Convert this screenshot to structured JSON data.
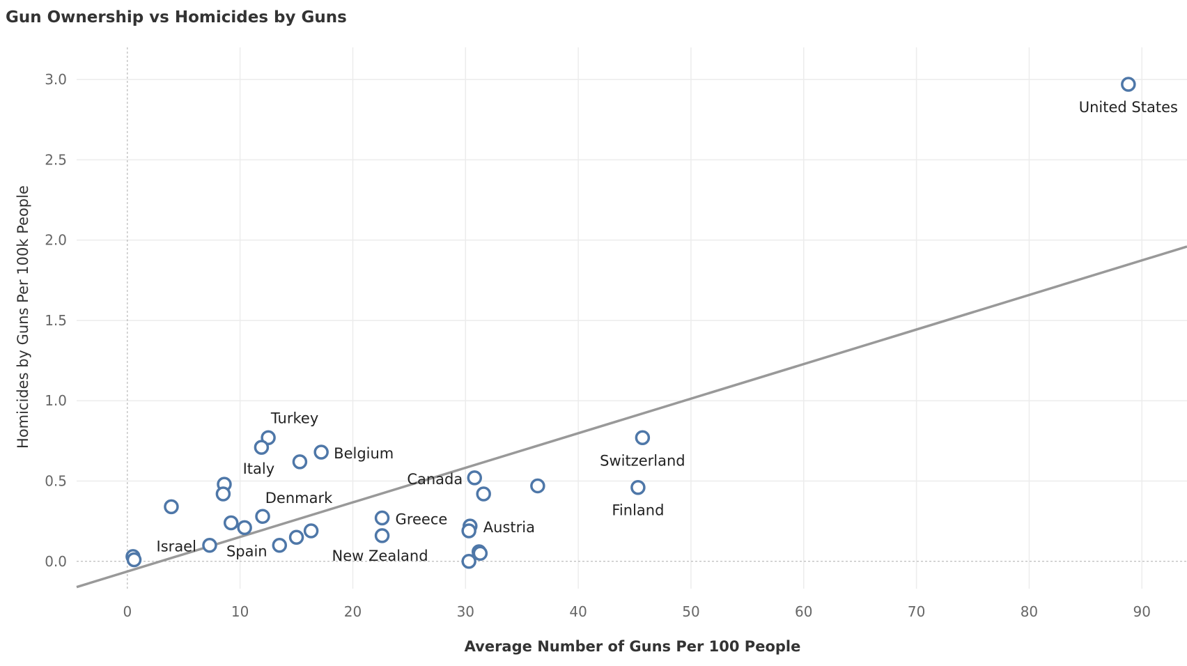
{
  "chart_data": {
    "type": "scatter",
    "title": "Gun Ownership vs Homicides by Guns",
    "xlabel": "Average Number of Guns Per 100 People",
    "ylabel": "Homicides by Guns Per 100k People",
    "xlim": [
      -4.5,
      94
    ],
    "ylim": [
      -0.17,
      3.2
    ],
    "x_ticks": [
      0,
      10,
      20,
      30,
      40,
      50,
      60,
      70,
      80,
      90
    ],
    "y_ticks": [
      0.0,
      0.5,
      1.0,
      1.5,
      2.0,
      2.5,
      3.0
    ],
    "x_tick_labels": [
      "0",
      "10",
      "20",
      "30",
      "40",
      "50",
      "60",
      "70",
      "80",
      "90"
    ],
    "y_tick_labels": [
      "0.0",
      "0.5",
      "1.0",
      "1.5",
      "2.0",
      "2.5",
      "3.0"
    ],
    "grid": true,
    "point_color": "#4e77a8",
    "trend_color": "#999999",
    "trend_line": {
      "x": [
        -4.5,
        94
      ],
      "y": [
        -0.16,
        1.96
      ]
    },
    "points": [
      {
        "x": 88.8,
        "y": 2.97,
        "label": "United States"
      },
      {
        "x": 45.7,
        "y": 0.77,
        "label": "Switzerland"
      },
      {
        "x": 45.3,
        "y": 0.46,
        "label": "Finland"
      },
      {
        "x": 36.4,
        "y": 0.47,
        "label": ""
      },
      {
        "x": 31.6,
        "y": 0.42,
        "label": ""
      },
      {
        "x": 30.8,
        "y": 0.52,
        "label": "Canada"
      },
      {
        "x": 30.4,
        "y": 0.22,
        "label": "Austria"
      },
      {
        "x": 30.3,
        "y": 0.19,
        "label": ""
      },
      {
        "x": 31.2,
        "y": 0.06,
        "label": ""
      },
      {
        "x": 31.3,
        "y": 0.05,
        "label": ""
      },
      {
        "x": 30.3,
        "y": 0.0,
        "label": ""
      },
      {
        "x": 22.6,
        "y": 0.27,
        "label": "Greece"
      },
      {
        "x": 22.6,
        "y": 0.16,
        "label": "New Zealand"
      },
      {
        "x": 17.2,
        "y": 0.68,
        "label": "Belgium"
      },
      {
        "x": 15.3,
        "y": 0.62,
        "label": ""
      },
      {
        "x": 12.5,
        "y": 0.77,
        "label": "Turkey"
      },
      {
        "x": 11.9,
        "y": 0.71,
        "label": "Italy"
      },
      {
        "x": 12.0,
        "y": 0.28,
        "label": "Denmark"
      },
      {
        "x": 16.3,
        "y": 0.19,
        "label": ""
      },
      {
        "x": 15.0,
        "y": 0.15,
        "label": ""
      },
      {
        "x": 13.5,
        "y": 0.1,
        "label": "Spain"
      },
      {
        "x": 10.4,
        "y": 0.21,
        "label": ""
      },
      {
        "x": 9.2,
        "y": 0.24,
        "label": ""
      },
      {
        "x": 8.6,
        "y": 0.48,
        "label": ""
      },
      {
        "x": 8.5,
        "y": 0.42,
        "label": ""
      },
      {
        "x": 7.3,
        "y": 0.1,
        "label": "Israel"
      },
      {
        "x": 3.9,
        "y": 0.34,
        "label": ""
      },
      {
        "x": 0.5,
        "y": 0.03,
        "label": ""
      },
      {
        "x": 0.6,
        "y": 0.01,
        "label": ""
      }
    ]
  }
}
